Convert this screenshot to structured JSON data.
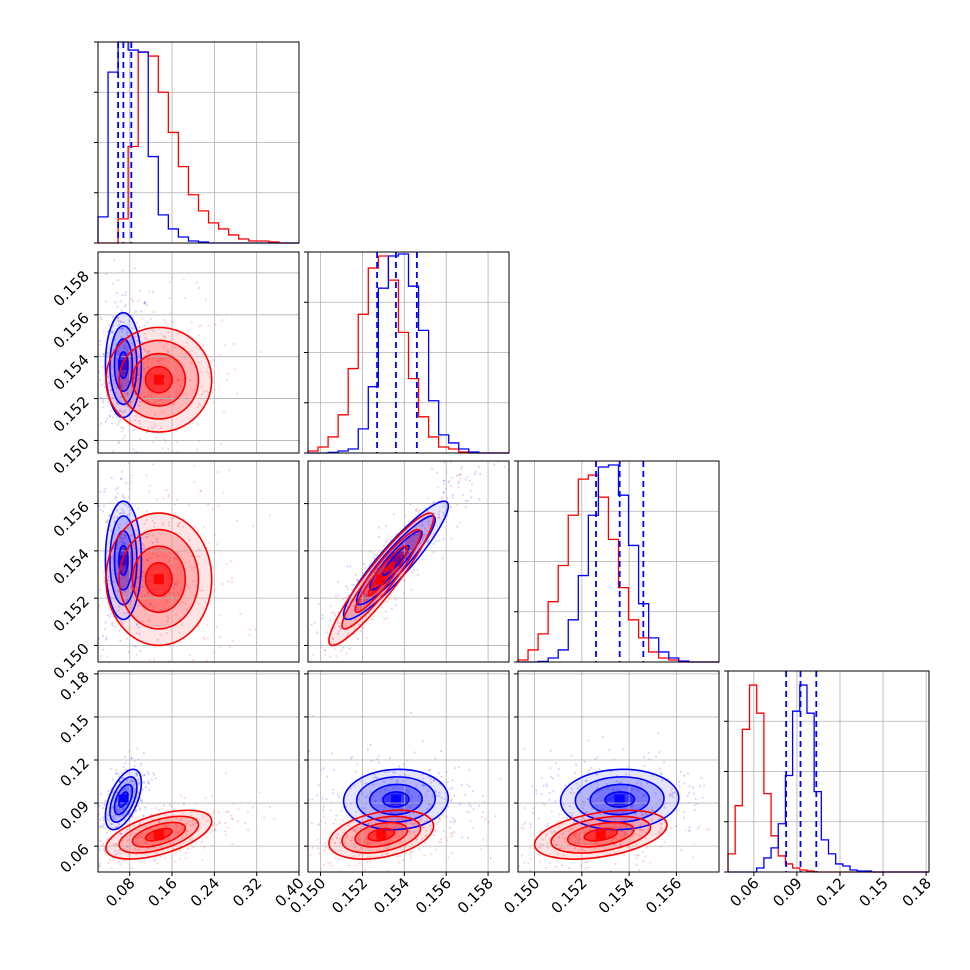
{
  "chart_data": {
    "type": "corner",
    "title": "",
    "colors": {
      "blue": "#0000ff",
      "red": "#ff0000",
      "grid": "#b0b0b0",
      "frame": "#000000"
    },
    "params": [
      {
        "id": "p0",
        "range": [
          0.02,
          0.4
        ],
        "xticks": [
          0.08,
          0.16,
          0.24,
          0.32,
          0.4
        ],
        "xticklabels": [
          "0.08",
          "0.16",
          "0.24",
          "0.32",
          "0.40"
        ],
        "gridx": [
          0.08,
          0.16,
          0.24,
          0.32,
          0.4
        ],
        "quantiles_blue": [
          0.058,
          0.068,
          0.083
        ]
      },
      {
        "id": "p1",
        "range": [
          0.1494,
          0.159
        ],
        "xticks": [
          0.15,
          0.152,
          0.154,
          0.156,
          0.158
        ],
        "xticklabels": [
          "0.150",
          "0.152",
          "0.154",
          "0.156",
          "0.158"
        ],
        "yticks": [
          0.15,
          0.152,
          0.154,
          0.156,
          0.158
        ],
        "yticklabels": [
          "0.150",
          "0.152",
          "0.154",
          "0.156",
          "0.158"
        ],
        "gridx": [
          0.15,
          0.152,
          0.154,
          0.156,
          0.158
        ],
        "quantiles_blue": [
          0.1527,
          0.1536,
          0.1546
        ]
      },
      {
        "id": "p2",
        "range": [
          0.1493,
          0.1578
        ],
        "xticks": [
          0.15,
          0.152,
          0.154,
          0.156
        ],
        "xticklabels": [
          "0.150",
          "0.152",
          "0.154",
          "0.156"
        ],
        "yticks": [
          0.15,
          0.152,
          0.154,
          0.156
        ],
        "yticklabels": [
          "0.150",
          "0.152",
          "0.154",
          "0.156"
        ],
        "gridx": [
          0.15,
          0.152,
          0.154,
          0.156
        ],
        "quantiles_blue": [
          0.1526,
          0.1536,
          0.1546
        ]
      },
      {
        "id": "p3",
        "range": [
          0.042,
          0.182
        ],
        "xticks": [
          0.06,
          0.09,
          0.12,
          0.15,
          0.18
        ],
        "xticklabels": [
          "0.06",
          "0.09",
          "0.12",
          "0.15",
          "0.18"
        ],
        "yticks": [
          0.06,
          0.09,
          0.12,
          0.15,
          0.18
        ],
        "yticklabels": [
          "0.06",
          "0.09",
          "0.12",
          "0.15",
          "0.18"
        ],
        "gridx": [
          0.06,
          0.09,
          0.12,
          0.15,
          0.18
        ],
        "quantiles_blue": [
          0.0825,
          0.0925,
          0.1035
        ]
      }
    ],
    "hist1d": [
      {
        "param": 0,
        "edges_range": [
          0.02,
          0.4
        ],
        "bins": 20,
        "blue": [
          0.13,
          0.85,
          1.0,
          0.96,
          0.95,
          0.43,
          0.14,
          0.07,
          0.03,
          0.01,
          0.005,
          0,
          0,
          0,
          0,
          0,
          0,
          0,
          0,
          0
        ],
        "red": [
          0,
          0,
          0.12,
          0.48,
          0.95,
          0.93,
          0.75,
          0.55,
          0.38,
          0.24,
          0.16,
          0.1,
          0.07,
          0.04,
          0.02,
          0.01,
          0.01,
          0.005,
          0,
          0
        ]
      },
      {
        "param": 1,
        "edges_range": [
          0.1494,
          0.159
        ],
        "bins": 20,
        "blue": [
          0,
          0,
          0.003,
          0.01,
          0.02,
          0.12,
          0.33,
          0.82,
          0.98,
          0.99,
          0.83,
          0.61,
          0.26,
          0.09,
          0.05,
          0.02,
          0.005,
          0,
          0,
          0
        ],
        "red": [
          0.01,
          0.03,
          0.08,
          0.19,
          0.42,
          0.69,
          0.92,
          0.98,
          0.86,
          0.6,
          0.37,
          0.18,
          0.08,
          0.03,
          0.02,
          0.005,
          0,
          0,
          0,
          0
        ]
      },
      {
        "param": 2,
        "edges_range": [
          0.1493,
          0.1578
        ],
        "bins": 20,
        "blue": [
          0,
          0,
          0.003,
          0.02,
          0.06,
          0.21,
          0.43,
          0.73,
          0.97,
          0.98,
          0.83,
          0.58,
          0.29,
          0.12,
          0.05,
          0.02,
          0.005,
          0,
          0,
          0
        ],
        "red": [
          0.01,
          0.06,
          0.14,
          0.3,
          0.48,
          0.73,
          0.91,
          0.93,
          0.82,
          0.61,
          0.37,
          0.21,
          0.12,
          0.05,
          0.02,
          0.01,
          0,
          0,
          0,
          0
        ]
      },
      {
        "param": 3,
        "edges_range": [
          0.042,
          0.182
        ],
        "bins": 28,
        "blue": [
          0,
          0,
          0,
          0,
          0.02,
          0.07,
          0.12,
          0.24,
          0.48,
          0.8,
          0.93,
          0.79,
          0.4,
          0.16,
          0.09,
          0.04,
          0.03,
          0.01,
          0.005,
          0.005,
          0,
          0,
          0,
          0,
          0,
          0,
          0,
          0
        ],
        "red": [
          0.09,
          0.33,
          0.71,
          0.93,
          0.79,
          0.39,
          0.18,
          0.08,
          0.04,
          0.02,
          0.01,
          0.005,
          0,
          0,
          0,
          0,
          0,
          0,
          0,
          0,
          0,
          0,
          0,
          0,
          0,
          0,
          0,
          0
        ]
      }
    ],
    "hist2d": [
      {
        "row": 1,
        "col": 0,
        "blue": {
          "mean": [
            0.068,
            0.1536
          ],
          "sd": [
            0.017,
            0.00125
          ],
          "rho": 0.0
        },
        "red": {
          "mean": [
            0.135,
            0.1529
          ],
          "sd": [
            0.05,
            0.00125
          ],
          "rho": 0.0
        }
      },
      {
        "row": 2,
        "col": 0,
        "blue": {
          "mean": [
            0.068,
            0.1536
          ],
          "sd": [
            0.017,
            0.00125
          ],
          "rho": 0.0
        },
        "red": {
          "mean": [
            0.135,
            0.1528
          ],
          "sd": [
            0.05,
            0.0014
          ],
          "rho": 0.0
        }
      },
      {
        "row": 2,
        "col": 1,
        "blue": {
          "mean": [
            0.1536,
            0.1536
          ],
          "sd": [
            0.00125,
            0.00125
          ],
          "rho": 0.92
        },
        "red": {
          "mean": [
            0.1529,
            0.1528
          ],
          "sd": [
            0.00125,
            0.0014
          ],
          "rho": 0.93
        }
      },
      {
        "row": 3,
        "col": 0,
        "blue": {
          "mean": [
            0.068,
            0.0925
          ],
          "sd": [
            0.017,
            0.0105
          ],
          "rho": 0.55
        },
        "red": {
          "mean": [
            0.135,
            0.068
          ],
          "sd": [
            0.05,
            0.0085
          ],
          "rho": 0.55
        }
      },
      {
        "row": 3,
        "col": 1,
        "blue": {
          "mean": [
            0.1536,
            0.0925
          ],
          "sd": [
            0.00125,
            0.0105
          ],
          "rho": 0.05
        },
        "red": {
          "mean": [
            0.1529,
            0.068
          ],
          "sd": [
            0.00125,
            0.0085
          ],
          "rho": 0.35
        }
      },
      {
        "row": 3,
        "col": 2,
        "blue": {
          "mean": [
            0.1536,
            0.0925
          ],
          "sd": [
            0.00125,
            0.0105
          ],
          "rho": 0.05
        },
        "red": {
          "mean": [
            0.1528,
            0.068
          ],
          "sd": [
            0.0014,
            0.0085
          ],
          "rho": 0.4
        }
      }
    ]
  }
}
